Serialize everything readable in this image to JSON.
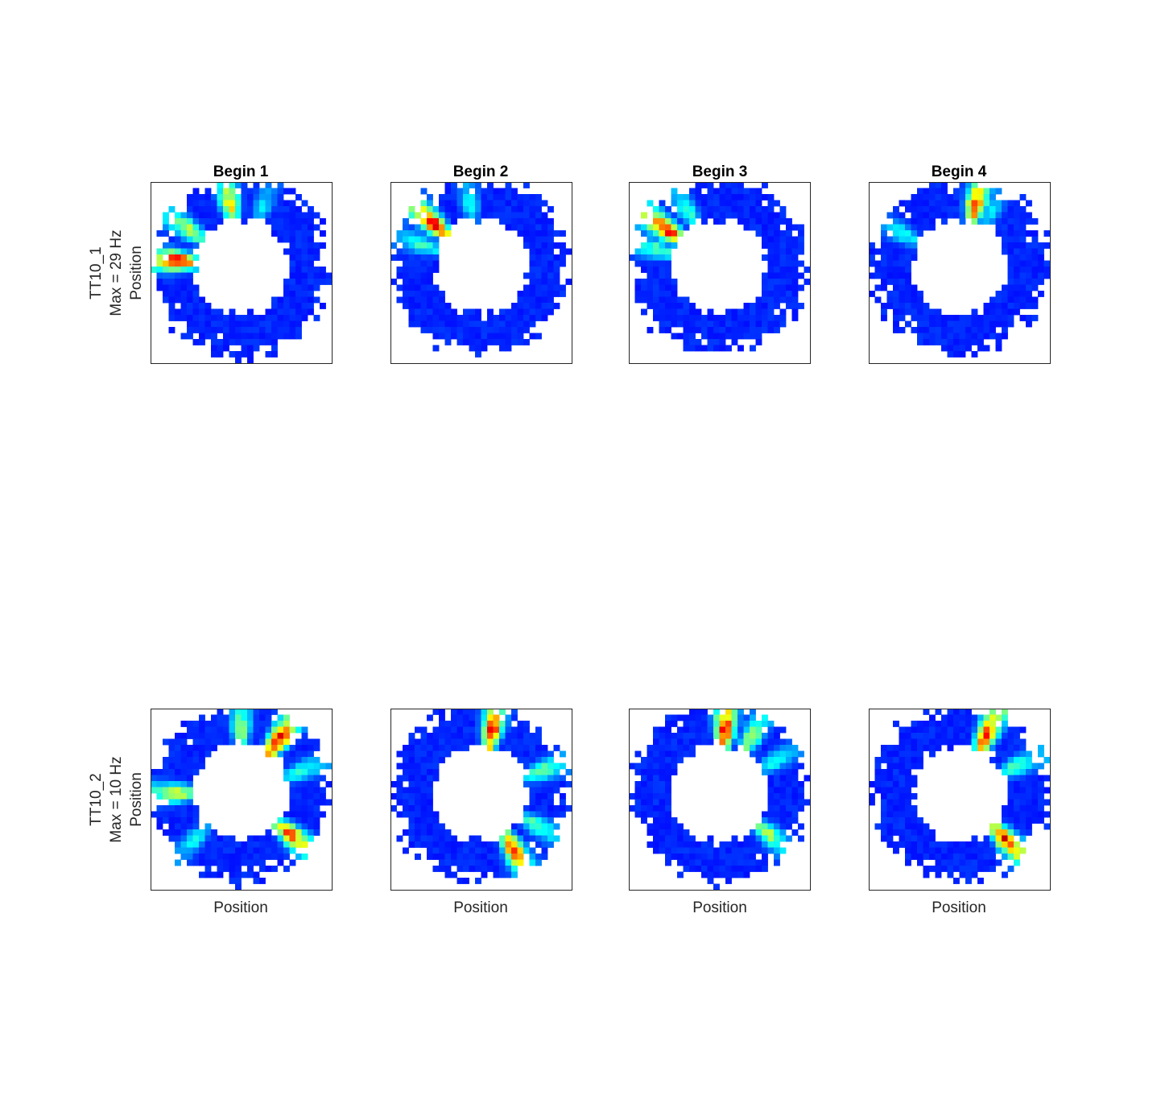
{
  "chart_data": {
    "type": "heatmap",
    "colormap": "jet",
    "column_titles": [
      "Begin 1",
      "Begin 2",
      "Begin 3",
      "Begin 4"
    ],
    "xlabel": "Position",
    "ylabel": "Position",
    "grid": false,
    "rows": [
      {
        "cell": "TT10_1",
        "max_label": "Max = 29 Hz",
        "panels": [
          {
            "title": "Begin 1",
            "hotspots": [
              {
                "angle": 175,
                "v": 1.0
              },
              {
                "angle": 145,
                "v": 0.6
              },
              {
                "angle": 100,
                "v": 0.7
              },
              {
                "angle": 70,
                "v": 0.3
              }
            ]
          },
          {
            "title": "Begin 2",
            "hotspots": [
              {
                "angle": 138,
                "v": 0.95
              },
              {
                "angle": 160,
                "v": 0.4
              },
              {
                "angle": 100,
                "v": 0.35
              }
            ]
          },
          {
            "title": "Begin 3",
            "hotspots": [
              {
                "angle": 145,
                "v": 1.0
              },
              {
                "angle": 165,
                "v": 0.45
              },
              {
                "angle": 120,
                "v": 0.4
              }
            ]
          },
          {
            "title": "Begin 4",
            "hotspots": [
              {
                "angle": 75,
                "v": 0.9
              },
              {
                "angle": 150,
                "v": 0.35
              },
              {
                "angle": 60,
                "v": 0.3
              }
            ]
          }
        ]
      },
      {
        "cell": "TT10_2",
        "max_label": "Max = 10 Hz",
        "panels": [
          {
            "title": "Begin 1",
            "hotspots": [
              {
                "angle": 55,
                "v": 1.0
              },
              {
                "angle": 90,
                "v": 0.55
              },
              {
                "angle": 180,
                "v": 0.6
              },
              {
                "angle": 320,
                "v": 0.85
              },
              {
                "angle": 20,
                "v": 0.4
              },
              {
                "angle": 225,
                "v": 0.35
              }
            ]
          },
          {
            "title": "Begin 2",
            "hotspots": [
              {
                "angle": 80,
                "v": 0.95
              },
              {
                "angle": 300,
                "v": 0.9
              },
              {
                "angle": 20,
                "v": 0.5
              },
              {
                "angle": 330,
                "v": 0.45
              }
            ]
          },
          {
            "title": "Begin 3",
            "hotspots": [
              {
                "angle": 85,
                "v": 1.0
              },
              {
                "angle": 60,
                "v": 0.55
              },
              {
                "angle": 320,
                "v": 0.55
              },
              {
                "angle": 30,
                "v": 0.35
              }
            ]
          },
          {
            "title": "Begin 4",
            "hotspots": [
              {
                "angle": 65,
                "v": 0.9
              },
              {
                "angle": 315,
                "v": 0.95
              },
              {
                "angle": 25,
                "v": 0.45
              }
            ]
          }
        ]
      }
    ]
  }
}
